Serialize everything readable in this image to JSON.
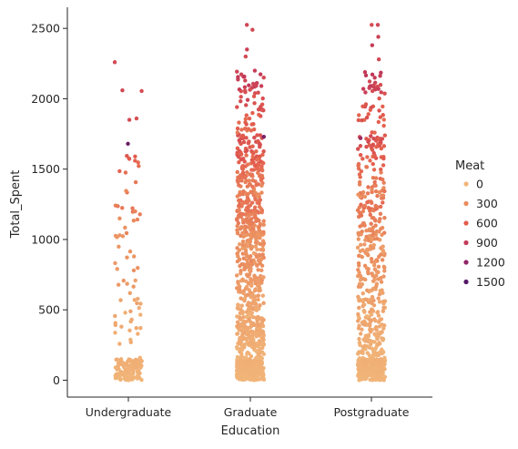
{
  "chart_data": {
    "type": "scatter",
    "subtype": "strip",
    "xlabel": "Education",
    "ylabel": "Total_Spent",
    "categories": [
      "Undergraduate",
      "Graduate",
      "Postgraduate"
    ],
    "ylim": [
      -120,
      2650
    ],
    "yticks": [
      0,
      500,
      1000,
      1500,
      2000,
      2500
    ],
    "grid": false,
    "hue": {
      "name": "Meat",
      "range": [
        0,
        1725
      ],
      "palette": [
        "#f1b579",
        "#ea8c5e",
        "#e35c4d",
        "#c43a58",
        "#8f2567",
        "#541866"
      ]
    },
    "legend": {
      "title": "Meat",
      "placement": "right",
      "entries": [
        {
          "label": "0",
          "color": "#f1b579"
        },
        {
          "label": "300",
          "color": "#ea8c5e"
        },
        {
          "label": "600",
          "color": "#e35c4d"
        },
        {
          "label": "900",
          "color": "#c43a58"
        },
        {
          "label": "1200",
          "color": "#8f2567"
        },
        {
          "label": "1500",
          "color": "#541866"
        }
      ]
    },
    "highlight_points": [
      {
        "category": "Undergraduate",
        "y": 2260,
        "meat": 880
      },
      {
        "category": "Undergraduate",
        "y": 2060,
        "meat": 900
      },
      {
        "category": "Undergraduate",
        "y": 2055,
        "meat": 850
      },
      {
        "category": "Undergraduate",
        "y": 1860,
        "meat": 820
      },
      {
        "category": "Undergraduate",
        "y": 1850,
        "meat": 860
      },
      {
        "category": "Undergraduate",
        "y": 1680,
        "meat": 1600
      },
      {
        "category": "Undergraduate",
        "y": 1590,
        "meat": 700
      },
      {
        "category": "Undergraduate",
        "y": 1560,
        "meat": 650
      },
      {
        "category": "Graduate",
        "y": 2525,
        "meat": 900
      },
      {
        "category": "Graduate",
        "y": 2490,
        "meat": 880
      },
      {
        "category": "Graduate",
        "y": 2350,
        "meat": 950
      },
      {
        "category": "Graduate",
        "y": 2300,
        "meat": 880
      },
      {
        "category": "Graduate",
        "y": 2200,
        "meat": 1000
      },
      {
        "category": "Graduate",
        "y": 1730,
        "meat": 1500
      },
      {
        "category": "Postgraduate",
        "y": 2525,
        "meat": 900
      },
      {
        "category": "Postgraduate",
        "y": 2525,
        "meat": 850
      },
      {
        "category": "Postgraduate",
        "y": 2440,
        "meat": 950
      },
      {
        "category": "Postgraduate",
        "y": 2380,
        "meat": 1000
      },
      {
        "category": "Postgraduate",
        "y": 2280,
        "meat": 900
      },
      {
        "category": "Postgraduate",
        "y": 1720,
        "meat": 1300
      }
    ],
    "distribution": [
      {
        "category": "Undergraduate",
        "bands": [
          {
            "y_range": [
              0,
              150
            ],
            "count": 130,
            "meat_range": [
              0,
              60
            ]
          },
          {
            "y_range": [
              150,
              450
            ],
            "count": 14,
            "meat_range": [
              0,
              120
            ]
          },
          {
            "y_range": [
              450,
              900
            ],
            "count": 22,
            "meat_range": [
              80,
              320
            ]
          },
          {
            "y_range": [
              900,
              1300
            ],
            "count": 18,
            "meat_range": [
              220,
              520
            ]
          },
          {
            "y_range": [
              1300,
              1600
            ],
            "count": 10,
            "meat_range": [
              380,
              700
            ]
          }
        ]
      },
      {
        "category": "Graduate",
        "bands": [
          {
            "y_range": [
              0,
              150
            ],
            "count": 300,
            "meat_range": [
              0,
              50
            ]
          },
          {
            "y_range": [
              150,
              450
            ],
            "count": 170,
            "meat_range": [
              0,
              150
            ]
          },
          {
            "y_range": [
              450,
              900
            ],
            "count": 170,
            "meat_range": [
              80,
              340
            ]
          },
          {
            "y_range": [
              900,
              1300
            ],
            "count": 180,
            "meat_range": [
              220,
              560
            ]
          },
          {
            "y_range": [
              1300,
              1750
            ],
            "count": 150,
            "meat_range": [
              380,
              820
            ]
          },
          {
            "y_range": [
              1750,
              2200
            ],
            "count": 60,
            "meat_range": [
              560,
              1050
            ]
          }
        ]
      },
      {
        "category": "Postgraduate",
        "bands": [
          {
            "y_range": [
              0,
              150
            ],
            "count": 230,
            "meat_range": [
              0,
              50
            ]
          },
          {
            "y_range": [
              150,
              450
            ],
            "count": 110,
            "meat_range": [
              0,
              150
            ]
          },
          {
            "y_range": [
              450,
              900
            ],
            "count": 110,
            "meat_range": [
              80,
              340
            ]
          },
          {
            "y_range": [
              900,
              1300
            ],
            "count": 100,
            "meat_range": [
              220,
              560
            ]
          },
          {
            "y_range": [
              1300,
              1750
            ],
            "count": 85,
            "meat_range": [
              380,
              820
            ]
          },
          {
            "y_range": [
              1750,
              2200
            ],
            "count": 45,
            "meat_range": [
              560,
              1050
            ]
          }
        ]
      }
    ]
  }
}
